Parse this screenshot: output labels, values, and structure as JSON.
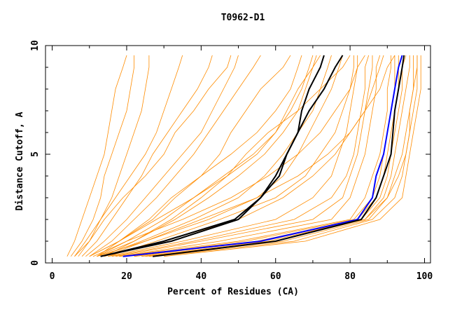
{
  "chart_data": {
    "type": "line",
    "title": "T0962-D1",
    "xlabel": "Percent of Residues (CA)",
    "ylabel": "Distance Cutoff, A",
    "xlim": [
      -1.8,
      101.6
    ],
    "ylim": [
      0,
      10
    ],
    "xticks": [
      0,
      20,
      40,
      60,
      80,
      100
    ],
    "yticks": [
      0,
      5,
      10
    ],
    "grid": false,
    "colors": {
      "models": "#ff8c00",
      "highlight": "#000000",
      "best": "#0000ff"
    },
    "y": [
      0.3,
      1,
      2,
      3,
      4,
      5,
      6,
      7,
      8,
      9,
      9.55
    ],
    "series": [
      {
        "color": "#ff8c00",
        "x": [
          4,
          6,
          8,
          10,
          12,
          14,
          15,
          16,
          17,
          19,
          20
        ]
      },
      {
        "color": "#ff8c00",
        "x": [
          5,
          8,
          11,
          13,
          14,
          16,
          18,
          20,
          21,
          22,
          22
        ]
      },
      {
        "color": "#ff8c00",
        "x": [
          6,
          9,
          13,
          16,
          18,
          20,
          22,
          24,
          25,
          26,
          26
        ]
      },
      {
        "color": "#ff8c00",
        "x": [
          7,
          10,
          13,
          17,
          21,
          25,
          28,
          30,
          32,
          34,
          35
        ]
      },
      {
        "color": "#ff8c00",
        "x": [
          8,
          12,
          16,
          20,
          24,
          27,
          31,
          35,
          39,
          42,
          43
        ]
      },
      {
        "color": "#ff8c00",
        "x": [
          6,
          10,
          14,
          19,
          25,
          30,
          33,
          38,
          42,
          47,
          48
        ]
      },
      {
        "color": "#ff8c00",
        "x": [
          9,
          14,
          20,
          25,
          30,
          35,
          40,
          43,
          46,
          49,
          50
        ]
      },
      {
        "color": "#ff8c00",
        "x": [
          10,
          16,
          22,
          28,
          33,
          38,
          42,
          46,
          50,
          54,
          56
        ]
      },
      {
        "color": "#ff8c00",
        "x": [
          10,
          18,
          27,
          33,
          40,
          45,
          48,
          52,
          56,
          62,
          64
        ]
      },
      {
        "color": "#ff8c00",
        "x": [
          12,
          18,
          26,
          32,
          40,
          48,
          55,
          60,
          64,
          66,
          67
        ]
      },
      {
        "color": "#ff8c00",
        "x": [
          12,
          20,
          30,
          38,
          46,
          54,
          60,
          64,
          67,
          69,
          70
        ]
      },
      {
        "color": "#ff8c00",
        "x": [
          14,
          22,
          33,
          42,
          50,
          57,
          62,
          66,
          68,
          70,
          71
        ]
      },
      {
        "color": "#ff8c00",
        "x": [
          13,
          24,
          38,
          50,
          57,
          62,
          66,
          70,
          72,
          74,
          75
        ]
      },
      {
        "color": "#ff8c00",
        "x": [
          14,
          25,
          40,
          55,
          62,
          66,
          69,
          72,
          75,
          77,
          78
        ]
      },
      {
        "color": "#ff8c00",
        "x": [
          12,
          22,
          32,
          40,
          47,
          52,
          58,
          66,
          72,
          78,
          80
        ]
      },
      {
        "color": "#ff8c00",
        "x": [
          15,
          28,
          45,
          60,
          68,
          72,
          76,
          78,
          80,
          81,
          81
        ]
      },
      {
        "color": "#ff8c00",
        "x": [
          15,
          35,
          60,
          70,
          75,
          77,
          79,
          80,
          81,
          82,
          82
        ]
      },
      {
        "color": "#ff8c00",
        "x": [
          16,
          38,
          65,
          75,
          79,
          81,
          82,
          83,
          84,
          84,
          85
        ]
      },
      {
        "color": "#ff8c00",
        "x": [
          17,
          40,
          70,
          78,
          80,
          82,
          83,
          84,
          85,
          86,
          86
        ]
      },
      {
        "color": "#ff8c00",
        "x": [
          18,
          45,
          75,
          80,
          82,
          84,
          85,
          86,
          87,
          87,
          88
        ]
      },
      {
        "color": "#ff8c00",
        "x": [
          18,
          50,
          80,
          84,
          86,
          88,
          89,
          90,
          90,
          91,
          91
        ]
      },
      {
        "color": "#ff8c00",
        "x": [
          20,
          52,
          81,
          86,
          88,
          89,
          90,
          91,
          92,
          92,
          92
        ]
      },
      {
        "color": "#ff8c00",
        "x": [
          22,
          55,
          82,
          87,
          89,
          90,
          91,
          92,
          93,
          93,
          93
        ]
      },
      {
        "color": "#ff8c00",
        "x": [
          24,
          58,
          83,
          88,
          90,
          91,
          92,
          93,
          94,
          94,
          95
        ]
      },
      {
        "color": "#ff8c00",
        "x": [
          25,
          60,
          84,
          89,
          91,
          92,
          93,
          94,
          95,
          96,
          96
        ]
      },
      {
        "color": "#ff8c00",
        "x": [
          26,
          62,
          85,
          90,
          92,
          94,
          95,
          96,
          97,
          97,
          97
        ]
      },
      {
        "color": "#ff8c00",
        "x": [
          28,
          65,
          86,
          92,
          94,
          95,
          96,
          97,
          98,
          98,
          98
        ]
      },
      {
        "color": "#ff8c00",
        "x": [
          30,
          68,
          88,
          94,
          95,
          96,
          97,
          98,
          99,
          99,
          99
        ]
      },
      {
        "color": "#ff8c00",
        "x": [
          22,
          55,
          84,
          90,
          93,
          95,
          96,
          96,
          97,
          98,
          98
        ]
      },
      {
        "color": "#ff8c00",
        "x": [
          14,
          30,
          50,
          62,
          70,
          76,
          80,
          84,
          88,
          90,
          92
        ]
      },
      {
        "color": "#ff8c00",
        "x": [
          12,
          25,
          42,
          55,
          66,
          74,
          80,
          84,
          86,
          88,
          89
        ]
      },
      {
        "color": "#ff8c00",
        "x": [
          11,
          20,
          35,
          48,
          58,
          66,
          72,
          76,
          80,
          82,
          84
        ]
      },
      {
        "color": "#ff8c00",
        "x": [
          10,
          18,
          28,
          38,
          47,
          55,
          60,
          63,
          66,
          70,
          72
        ]
      },
      {
        "color": "#000000",
        "x": [
          13,
          30,
          49,
          56,
          61,
          63,
          66,
          67,
          69,
          72,
          73
        ]
      },
      {
        "color": "#000000",
        "x": [
          13,
          32,
          50,
          56,
          60,
          63,
          66,
          69,
          73,
          76,
          78
        ]
      },
      {
        "color": "#0000ff",
        "x": [
          19,
          56,
          82,
          86,
          87,
          89,
          90,
          91,
          92,
          93,
          94
        ]
      },
      {
        "color": "#000000",
        "x": [
          27,
          60,
          83,
          87,
          89,
          91,
          91.5,
          92,
          93,
          94,
          94.5
        ]
      }
    ]
  }
}
